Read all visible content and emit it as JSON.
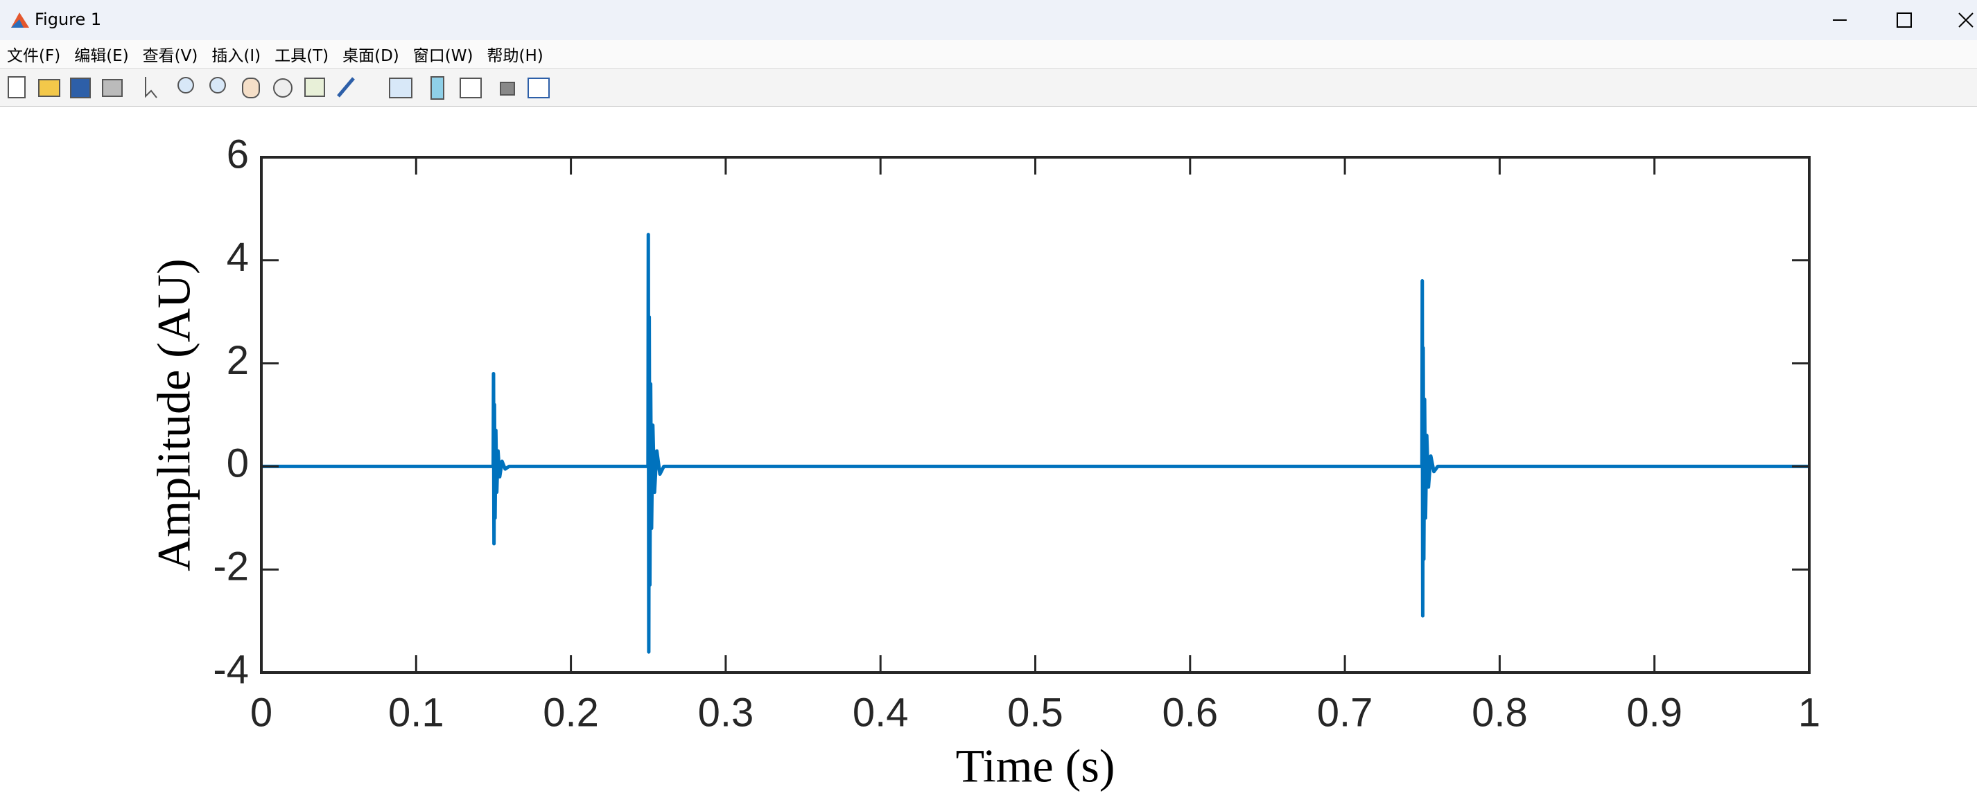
{
  "window": {
    "title": "Figure 1"
  },
  "menu": [
    "文件(F)",
    "编辑(E)",
    "查看(V)",
    "插入(I)",
    "工具(T)",
    "桌面(D)",
    "窗口(W)",
    "帮助(H)"
  ],
  "chart_data": {
    "type": "line",
    "xlabel": "Time (s)",
    "ylabel": "Amplitude (AU)",
    "x": [
      0,
      0.1498,
      0.15,
      0.1503,
      0.1506,
      0.151,
      0.1515,
      0.1521,
      0.1529,
      0.154,
      0.1555,
      0.1575,
      0.16,
      0.2498,
      0.25,
      0.2503,
      0.2506,
      0.251,
      0.2515,
      0.2521,
      0.2529,
      0.254,
      0.2555,
      0.2575,
      0.26,
      0.7498,
      0.75,
      0.7503,
      0.7506,
      0.751,
      0.7515,
      0.7521,
      0.7529,
      0.754,
      0.7555,
      0.7575,
      0.76,
      1
    ],
    "values": [
      0,
      0,
      1.8,
      -1.5,
      1.2,
      -1.0,
      0.7,
      -0.5,
      0.3,
      -0.2,
      0.1,
      -0.05,
      0,
      0,
      4.5,
      -3.6,
      2.9,
      -2.3,
      1.6,
      -1.2,
      0.8,
      -0.5,
      0.3,
      -0.15,
      0,
      0,
      3.6,
      -2.9,
      2.3,
      -1.8,
      1.3,
      -1.0,
      0.6,
      -0.4,
      0.2,
      -0.1,
      0,
      0
    ],
    "color": "#0072bd",
    "xlim": [
      0,
      1
    ],
    "xticks": [
      0,
      0.1,
      0.2,
      0.3,
      0.4,
      0.5,
      0.6,
      0.7,
      0.8,
      0.9,
      1
    ],
    "ylim": [
      -4,
      6
    ],
    "yticks": [
      -4,
      -2,
      0,
      2,
      4,
      6
    ],
    "box": true
  }
}
